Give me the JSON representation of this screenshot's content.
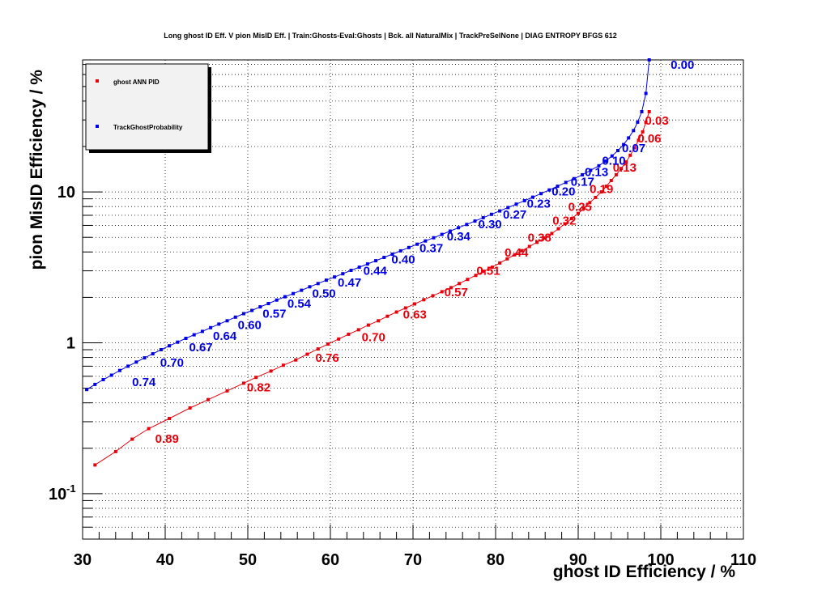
{
  "chart_data": {
    "type": "line",
    "title": "Long ghost ID Eff. V pion MisID Eff. | Train:Ghosts-Eval:Ghosts | Bck. all NaturalMix | TrackPreSelNone | DIAG ENTROPY BFGS 612",
    "xlabel": "ghost ID Efficiency / %",
    "ylabel": "pion MisID Efficiency / %",
    "xlim": [
      30,
      110
    ],
    "ylim": [
      0.05,
      75
    ],
    "yscale": "log",
    "grid": true,
    "legend_position": "top-left",
    "x_ticks": [
      "30",
      "40",
      "50",
      "60",
      "70",
      "80",
      "90",
      "100",
      "110"
    ],
    "y_ticks": [
      {
        "value": 0.1,
        "base": "10",
        "exp": "-1"
      },
      {
        "value": 1,
        "base": "1",
        "exp": ""
      },
      {
        "value": 10,
        "base": "10",
        "exp": ""
      }
    ],
    "series": [
      {
        "name": "ghost ANN PID",
        "color": "#e8000b",
        "x": [
          31.5,
          34,
          36,
          38,
          40.5,
          43,
          45.2,
          47.5,
          49.5,
          51,
          52.8,
          54.3,
          55.8,
          57.2,
          58.5,
          59.7,
          61,
          62.2,
          63.4,
          64.6,
          65.8,
          66.9,
          68,
          69.1,
          70.2,
          71.3,
          72.4,
          73.5,
          74.6,
          75.6,
          76.6,
          77.6,
          78.6,
          79.6,
          80.5,
          81.4,
          82.3,
          83.2,
          84.1,
          85,
          85.9,
          86.8,
          87.6,
          88.4,
          89.2,
          90,
          90.7,
          91.4,
          92.1,
          92.8,
          93.4,
          94,
          94.6,
          95.2,
          95.8,
          96.3,
          96.8,
          97.3,
          97.8,
          98.2,
          98.6
        ],
        "y": [
          0.155,
          0.19,
          0.23,
          0.27,
          0.315,
          0.37,
          0.42,
          0.48,
          0.54,
          0.59,
          0.65,
          0.71,
          0.77,
          0.84,
          0.91,
          0.98,
          1.06,
          1.14,
          1.22,
          1.31,
          1.4,
          1.5,
          1.6,
          1.7,
          1.81,
          1.93,
          2.05,
          2.18,
          2.32,
          2.47,
          2.63,
          2.8,
          2.98,
          3.17,
          3.38,
          3.6,
          3.83,
          4.08,
          4.35,
          4.64,
          4.95,
          5.3,
          5.7,
          6.15,
          6.65,
          7.2,
          7.8,
          8.5,
          9.2,
          10,
          10.9,
          11.9,
          13,
          14.3,
          15.8,
          17.5,
          19.6,
          22,
          25,
          29,
          34
        ],
        "labels": [
          {
            "text": "0.89",
            "x": 38.2,
            "y": 0.265
          },
          {
            "text": "0.82",
            "x": 49.3,
            "y": 0.58
          },
          {
            "text": "0.76",
            "x": 57.6,
            "y": 0.91
          },
          {
            "text": "0.70",
            "x": 63.2,
            "y": 1.25
          },
          {
            "text": "0.63",
            "x": 68.2,
            "y": 1.76
          },
          {
            "text": "0.57",
            "x": 73.2,
            "y": 2.48
          },
          {
            "text": "0.51",
            "x": 77.1,
            "y": 3.43
          },
          {
            "text": "0.44",
            "x": 80.5,
            "y": 4.55
          },
          {
            "text": "0.38",
            "x": 83.3,
            "y": 5.7
          },
          {
            "text": "0.32",
            "x": 86.3,
            "y": 7.4
          },
          {
            "text": "0.25",
            "x": 88.2,
            "y": 9.1
          },
          {
            "text": "0.19",
            "x": 90.8,
            "y": 12
          },
          {
            "text": "0.13",
            "x": 93.6,
            "y": 16.6
          },
          {
            "text": "0.06",
            "x": 96.6,
            "y": 26
          },
          {
            "text": "0.03",
            "x": 97.5,
            "y": 34
          }
        ]
      },
      {
        "name": "TrackGhostProbability",
        "color": "#0000e6",
        "x": [
          30.5,
          31.5,
          32.5,
          33.5,
          34.5,
          35.5,
          36.5,
          37.5,
          38.5,
          39.5,
          40.5,
          41.5,
          42.5,
          43.5,
          44.5,
          45.5,
          46.5,
          47.5,
          48.5,
          49.5,
          50.5,
          51.5,
          52.5,
          53.5,
          54.5,
          55.5,
          56.5,
          57.5,
          58.5,
          59.5,
          60.5,
          61.5,
          62.5,
          63.5,
          64.5,
          65.5,
          66.5,
          67.5,
          68.5,
          69.5,
          70.5,
          71.5,
          72.5,
          73.5,
          74.5,
          75.5,
          76.5,
          77.5,
          78.5,
          79.5,
          80.5,
          81.5,
          82.5,
          83.5,
          84.5,
          85.5,
          86.5,
          87.5,
          88.5,
          89.5,
          90.5,
          91.5,
          92.5,
          93.3,
          94.1,
          94.8,
          95.5,
          96.1,
          96.7,
          97.2,
          97.7,
          98.2,
          98.6
        ],
        "y": [
          0.49,
          0.53,
          0.57,
          0.61,
          0.655,
          0.7,
          0.745,
          0.795,
          0.845,
          0.9,
          0.955,
          1.01,
          1.07,
          1.13,
          1.19,
          1.26,
          1.33,
          1.4,
          1.48,
          1.56,
          1.64,
          1.73,
          1.82,
          1.92,
          2.02,
          2.12,
          2.23,
          2.35,
          2.47,
          2.6,
          2.73,
          2.87,
          3.02,
          3.17,
          3.33,
          3.5,
          3.68,
          3.87,
          4.07,
          4.28,
          4.5,
          4.73,
          4.97,
          5.23,
          5.5,
          5.79,
          6.09,
          6.41,
          6.75,
          7.1,
          7.48,
          7.88,
          8.3,
          8.75,
          9.23,
          9.74,
          10.3,
          10.9,
          11.55,
          12.25,
          13,
          13.9,
          14.9,
          16,
          17.3,
          18.8,
          20.6,
          22.8,
          25.5,
          29,
          34,
          45,
          75
        ],
        "labels": [
          {
            "text": "0.74",
            "x": 35.4,
            "y": 0.63
          },
          {
            "text": "0.70",
            "x": 38.8,
            "y": 0.845
          },
          {
            "text": "0.67",
            "x": 42.3,
            "y": 1.07
          },
          {
            "text": "0.64",
            "x": 45.2,
            "y": 1.27
          },
          {
            "text": "0.60",
            "x": 48.2,
            "y": 1.5
          },
          {
            "text": "0.57",
            "x": 51.2,
            "y": 1.79
          },
          {
            "text": "0.54",
            "x": 54.2,
            "y": 2.08
          },
          {
            "text": "0.50",
            "x": 57.2,
            "y": 2.43
          },
          {
            "text": "0.47",
            "x": 60.3,
            "y": 2.88
          },
          {
            "text": "0.44",
            "x": 63.4,
            "y": 3.45
          },
          {
            "text": "0.40",
            "x": 66.8,
            "y": 4.08
          },
          {
            "text": "0.37",
            "x": 70.2,
            "y": 4.85
          },
          {
            "text": "0.34",
            "x": 73.5,
            "y": 5.82
          },
          {
            "text": "0.30",
            "x": 77.3,
            "y": 6.98
          },
          {
            "text": "0.27",
            "x": 80.3,
            "y": 8.1
          },
          {
            "text": "0.23",
            "x": 83.2,
            "y": 9.6
          },
          {
            "text": "0.20",
            "x": 86.2,
            "y": 11.55
          },
          {
            "text": "0.17",
            "x": 88.5,
            "y": 13.4
          },
          {
            "text": "0.13",
            "x": 90.2,
            "y": 15.5
          },
          {
            "text": "0.10",
            "x": 92.3,
            "y": 18.4
          },
          {
            "text": "0.07",
            "x": 94.7,
            "y": 22.3
          },
          {
            "text": "0.00",
            "x": 100.6,
            "y": 80
          }
        ]
      }
    ]
  }
}
